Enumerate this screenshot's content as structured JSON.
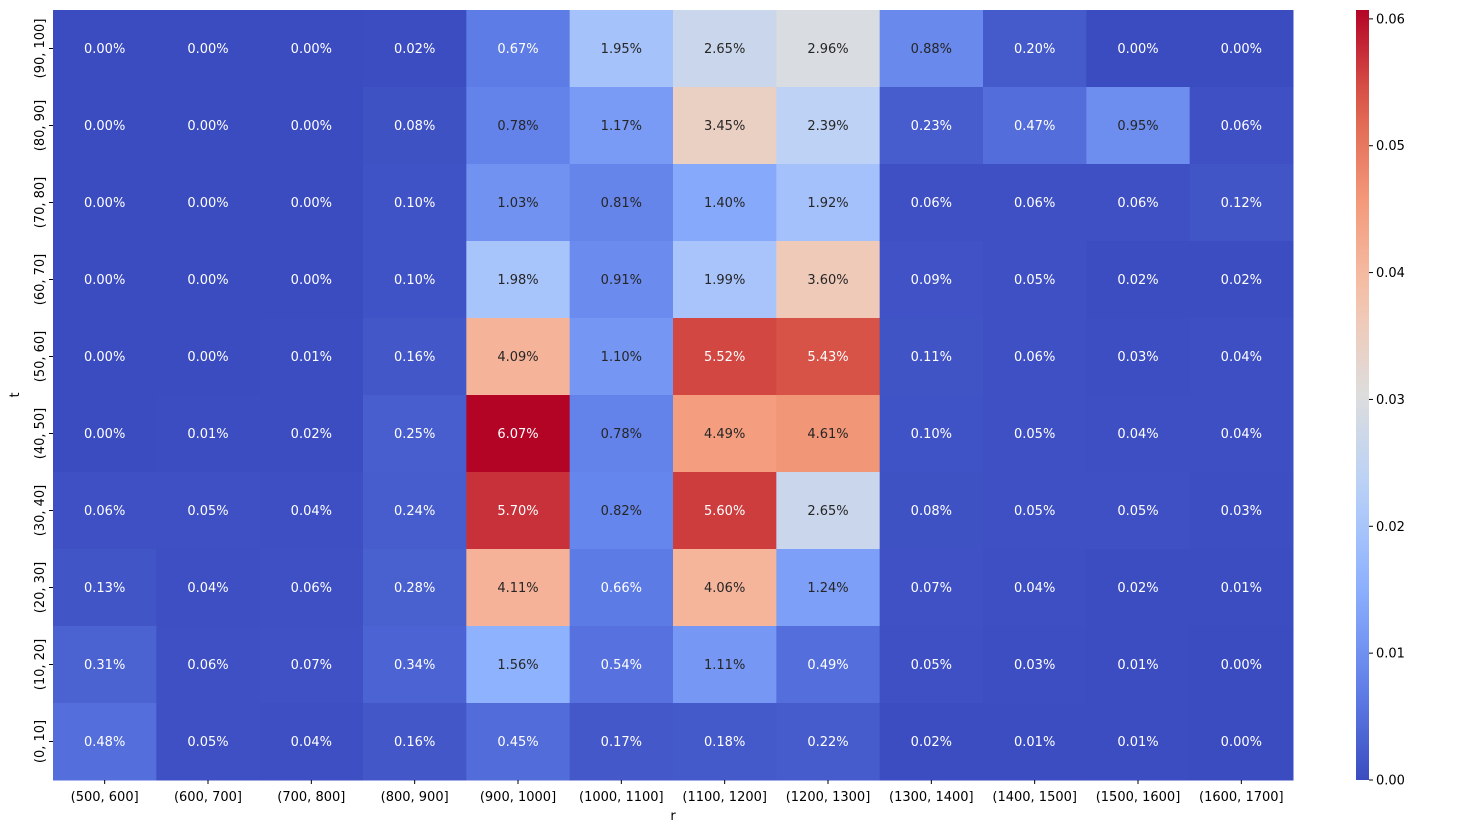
{
  "chart_data": {
    "type": "heatmap",
    "title": "",
    "xlabel": "r",
    "ylabel": "t",
    "x_categories": [
      "(500, 600]",
      "(600, 700]",
      "(700, 800]",
      "(800, 900]",
      "(900, 1000]",
      "(1000, 1100]",
      "(1100, 1200]",
      "(1200, 1300]",
      "(1300, 1400]",
      "(1400, 1500]",
      "(1500, 1600]",
      "(1600, 1700]"
    ],
    "y_categories": [
      "(90, 100]",
      "(80, 90]",
      "(70, 80]",
      "(60, 70]",
      "(50, 60]",
      "(40, 50]",
      "(30, 40]",
      "(20, 30]",
      "(10, 20]",
      "(0, 10]"
    ],
    "values_percent": [
      [
        0.0,
        0.0,
        0.0,
        0.02,
        0.67,
        1.95,
        2.65,
        2.96,
        0.88,
        0.2,
        0.0,
        0.0
      ],
      [
        0.0,
        0.0,
        0.0,
        0.08,
        0.78,
        1.17,
        3.45,
        2.39,
        0.23,
        0.47,
        0.95,
        0.06
      ],
      [
        0.0,
        0.0,
        0.0,
        0.1,
        1.03,
        0.81,
        1.4,
        1.92,
        0.06,
        0.06,
        0.06,
        0.12
      ],
      [
        0.0,
        0.0,
        0.0,
        0.1,
        1.98,
        0.91,
        1.99,
        3.6,
        0.09,
        0.05,
        0.02,
        0.02
      ],
      [
        0.0,
        0.0,
        0.01,
        0.16,
        4.09,
        1.1,
        5.52,
        5.43,
        0.11,
        0.06,
        0.03,
        0.04
      ],
      [
        0.0,
        0.01,
        0.02,
        0.25,
        6.07,
        0.78,
        4.49,
        4.61,
        0.1,
        0.05,
        0.04,
        0.04
      ],
      [
        0.06,
        0.05,
        0.04,
        0.24,
        5.7,
        0.82,
        5.6,
        2.65,
        0.08,
        0.05,
        0.05,
        0.03
      ],
      [
        0.13,
        0.04,
        0.06,
        0.28,
        4.11,
        0.66,
        4.06,
        1.24,
        0.07,
        0.04,
        0.02,
        0.01
      ],
      [
        0.31,
        0.06,
        0.07,
        0.34,
        1.56,
        0.54,
        1.11,
        0.49,
        0.05,
        0.03,
        0.01,
        0.0
      ],
      [
        0.48,
        0.05,
        0.04,
        0.16,
        0.45,
        0.17,
        0.18,
        0.22,
        0.02,
        0.01,
        0.01,
        0.0
      ]
    ],
    "colormap": "coolwarm",
    "vmin": 0.0,
    "vmax": 0.0607,
    "colorbar_ticks": [
      "0.00",
      "0.01",
      "0.02",
      "0.03",
      "0.04",
      "0.05",
      "0.06"
    ],
    "colorbar_tick_values": [
      0,
      0.01,
      0.02,
      0.03,
      0.04,
      0.05,
      0.06
    ]
  }
}
